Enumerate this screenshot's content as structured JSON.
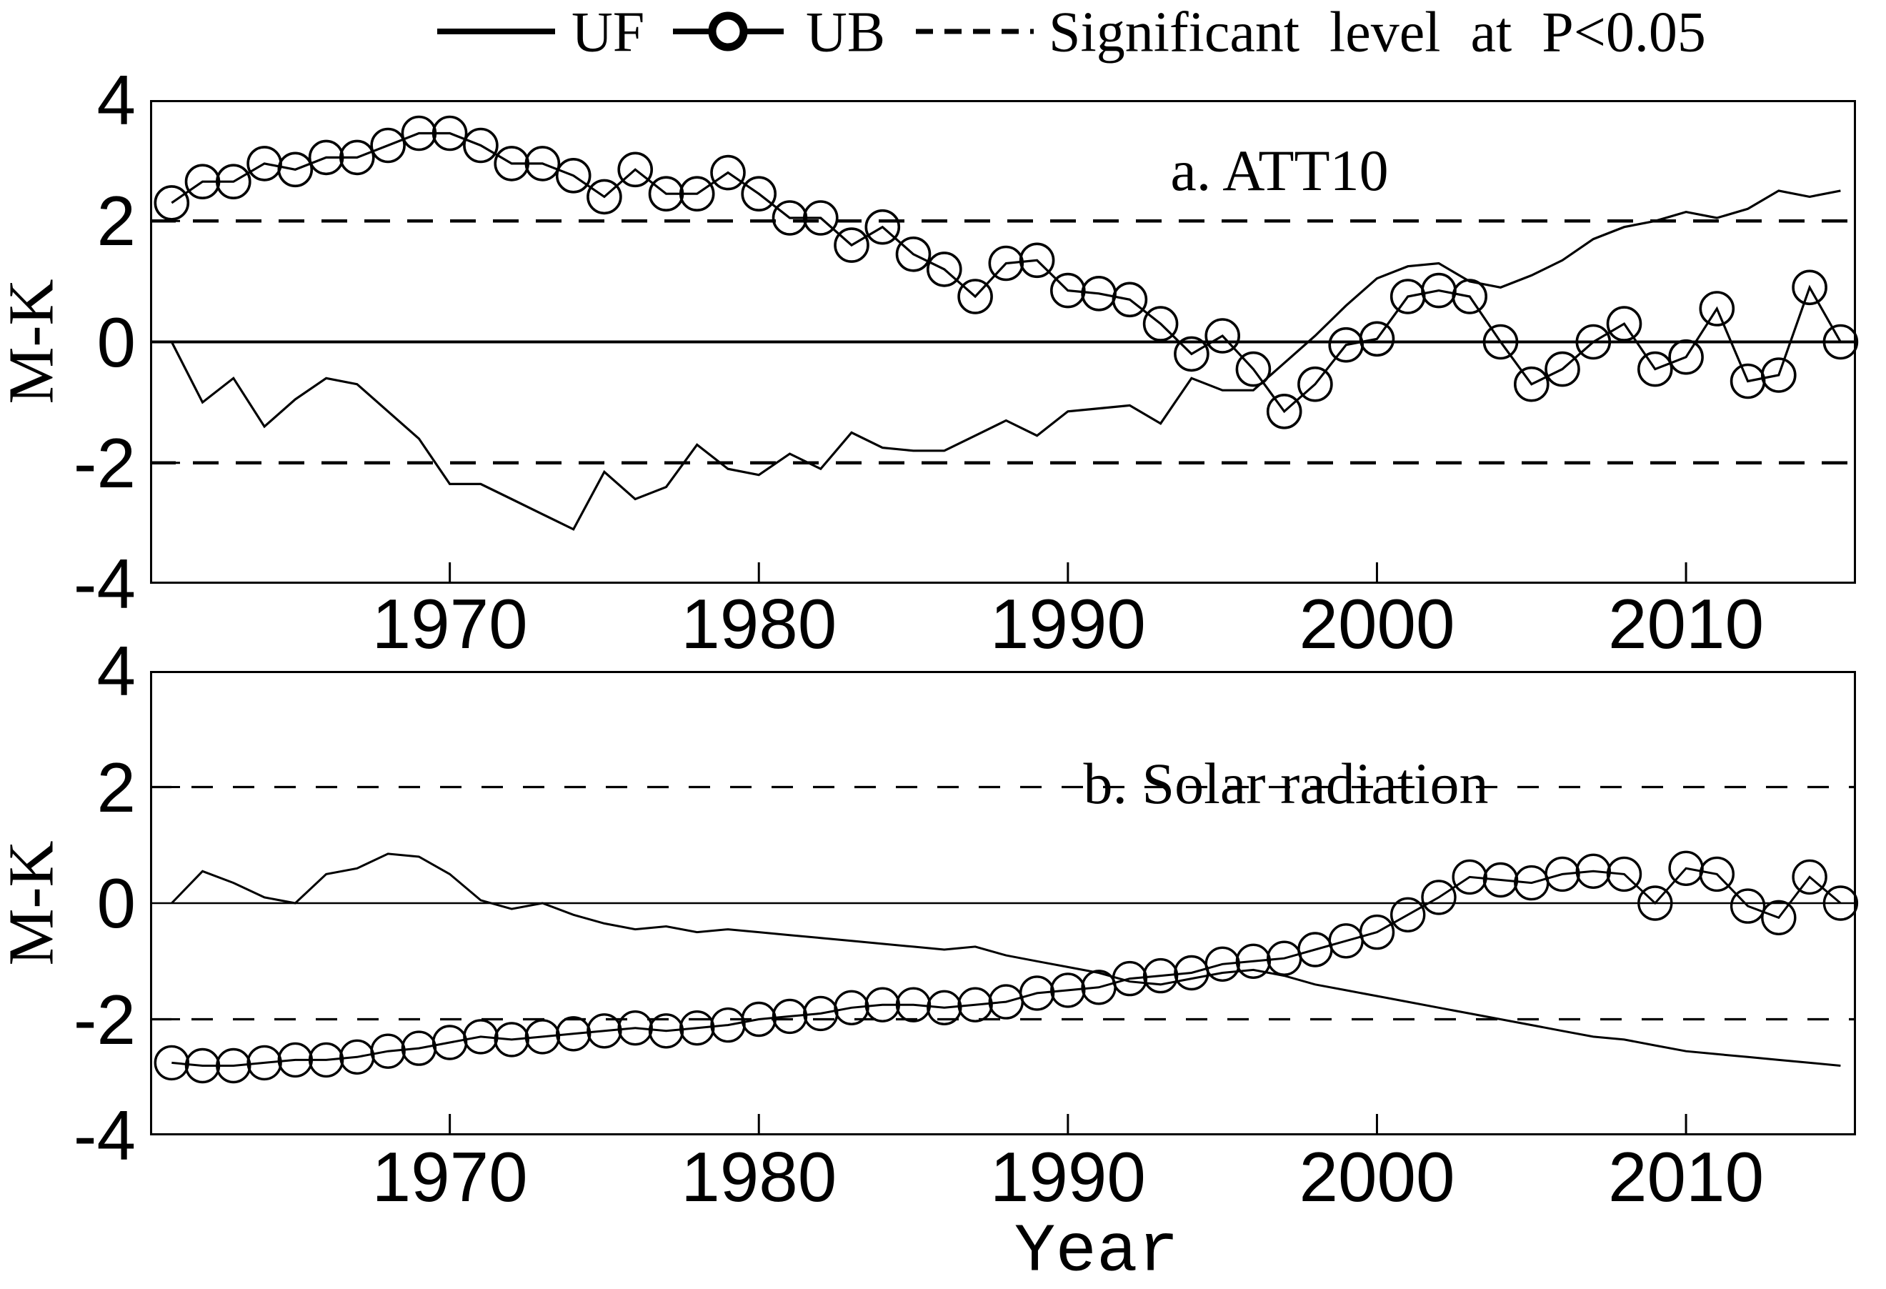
{
  "figure": {
    "background": "#ffffff",
    "axis_color": "#000000",
    "ylabel": "M-K",
    "xlabel": "Year"
  },
  "legend": {
    "items": [
      {
        "label": "UF",
        "marker": "solid-line"
      },
      {
        "label": "UB",
        "marker": "line-with-circle"
      },
      {
        "label": "Significant level at P<0.05",
        "marker": "dashed-line"
      }
    ]
  },
  "chart_data": [
    {
      "type": "line",
      "panel": "a",
      "title": "a. ATT10",
      "ylabel": "M-K",
      "ylim": [
        -4,
        4
      ],
      "xlim": [
        1960.3,
        2015.5
      ],
      "yticks": [
        4,
        2,
        0,
        -2,
        -4
      ],
      "xticks": [
        1970,
        1980,
        1990,
        2000,
        2010
      ],
      "significance_level": 2,
      "grid": false,
      "x": [
        1961,
        1962,
        1963,
        1964,
        1965,
        1966,
        1967,
        1968,
        1969,
        1970,
        1971,
        1972,
        1973,
        1974,
        1975,
        1976,
        1977,
        1978,
        1979,
        1980,
        1981,
        1982,
        1983,
        1984,
        1985,
        1986,
        1987,
        1988,
        1989,
        1990,
        1991,
        1992,
        1993,
        1994,
        1995,
        1996,
        1997,
        1998,
        1999,
        2000,
        2001,
        2002,
        2003,
        2004,
        2005,
        2006,
        2007,
        2008,
        2009,
        2010,
        2011,
        2012,
        2013,
        2014,
        2015
      ],
      "series": [
        {
          "name": "UF",
          "style": "solid",
          "values": [
            0,
            -1.0,
            -0.6,
            -1.4,
            -0.95,
            -0.6,
            -0.7,
            -1.15,
            -1.6,
            -2.35,
            -2.35,
            -2.6,
            -2.85,
            -3.1,
            -2.15,
            -2.6,
            -2.4,
            -1.7,
            -2.1,
            -2.2,
            -1.85,
            -2.1,
            -1.5,
            -1.75,
            -1.8,
            -1.8,
            -1.55,
            -1.3,
            -1.55,
            -1.15,
            -1.1,
            -1.05,
            -1.35,
            -0.6,
            -0.8,
            -0.8,
            -0.35,
            0.1,
            0.6,
            1.05,
            1.25,
            1.3,
            1.0,
            0.9,
            1.1,
            1.35,
            1.7,
            1.9,
            2.0,
            2.15,
            2.05,
            2.2,
            2.5,
            2.4,
            2.5
          ]
        },
        {
          "name": "UB",
          "style": "line-circle",
          "values": [
            2.3,
            2.65,
            2.65,
            2.95,
            2.85,
            3.05,
            3.05,
            3.25,
            3.45,
            3.45,
            3.25,
            2.95,
            2.95,
            2.75,
            2.4,
            2.85,
            2.45,
            2.45,
            2.8,
            2.45,
            2.05,
            2.05,
            1.6,
            1.9,
            1.45,
            1.2,
            0.75,
            1.3,
            1.35,
            0.85,
            0.8,
            0.7,
            0.3,
            -0.2,
            0.1,
            -0.45,
            -1.15,
            -0.7,
            -0.05,
            0.05,
            0.75,
            0.85,
            0.75,
            0.0,
            -0.7,
            -0.45,
            0.0,
            0.3,
            -0.45,
            -0.25,
            0.55,
            -0.65,
            -0.55,
            0.9,
            0.0
          ]
        }
      ]
    },
    {
      "type": "line",
      "panel": "b",
      "title": "b. Solar radiation",
      "ylabel": "M-K",
      "ylim": [
        -4,
        4
      ],
      "xlim": [
        1960.3,
        2015.5
      ],
      "yticks": [
        4,
        2,
        0,
        -2,
        -4
      ],
      "xticks": [
        1970,
        1980,
        1990,
        2000,
        2010
      ],
      "significance_level": 2,
      "grid": false,
      "x": [
        1961,
        1962,
        1963,
        1964,
        1965,
        1966,
        1967,
        1968,
        1969,
        1970,
        1971,
        1972,
        1973,
        1974,
        1975,
        1976,
        1977,
        1978,
        1979,
        1980,
        1981,
        1982,
        1983,
        1984,
        1985,
        1986,
        1987,
        1988,
        1989,
        1990,
        1991,
        1992,
        1993,
        1994,
        1995,
        1996,
        1997,
        1998,
        1999,
        2000,
        2001,
        2002,
        2003,
        2004,
        2005,
        2006,
        2007,
        2008,
        2009,
        2010,
        2011,
        2012,
        2013,
        2014,
        2015
      ],
      "series": [
        {
          "name": "UF",
          "style": "solid",
          "values": [
            0,
            0.55,
            0.35,
            0.1,
            0.0,
            0.5,
            0.6,
            0.85,
            0.8,
            0.5,
            0.05,
            -0.1,
            0.0,
            -0.2,
            -0.35,
            -0.45,
            -0.4,
            -0.5,
            -0.45,
            -0.5,
            -0.55,
            -0.6,
            -0.65,
            -0.7,
            -0.75,
            -0.8,
            -0.75,
            -0.9,
            -1.0,
            -1.1,
            -1.2,
            -1.35,
            -1.4,
            -1.3,
            -1.2,
            -1.15,
            -1.25,
            -1.4,
            -1.5,
            -1.6,
            -1.7,
            -1.8,
            -1.9,
            -2.0,
            -2.1,
            -2.2,
            -2.3,
            -2.35,
            -2.45,
            -2.55,
            -2.6,
            -2.65,
            -2.7,
            -2.75,
            -2.8
          ]
        },
        {
          "name": "UB",
          "style": "line-circle",
          "values": [
            -2.75,
            -2.8,
            -2.8,
            -2.75,
            -2.7,
            -2.7,
            -2.65,
            -2.55,
            -2.5,
            -2.4,
            -2.3,
            -2.35,
            -2.3,
            -2.25,
            -2.2,
            -2.15,
            -2.2,
            -2.15,
            -2.1,
            -2.0,
            -1.95,
            -1.9,
            -1.8,
            -1.75,
            -1.75,
            -1.8,
            -1.75,
            -1.7,
            -1.55,
            -1.5,
            -1.45,
            -1.3,
            -1.25,
            -1.2,
            -1.05,
            -1.0,
            -0.95,
            -0.8,
            -0.65,
            -0.5,
            -0.2,
            0.1,
            0.45,
            0.4,
            0.35,
            0.5,
            0.55,
            0.5,
            0.0,
            0.6,
            0.5,
            -0.05,
            -0.25,
            0.45,
            0.0
          ]
        }
      ]
    }
  ]
}
